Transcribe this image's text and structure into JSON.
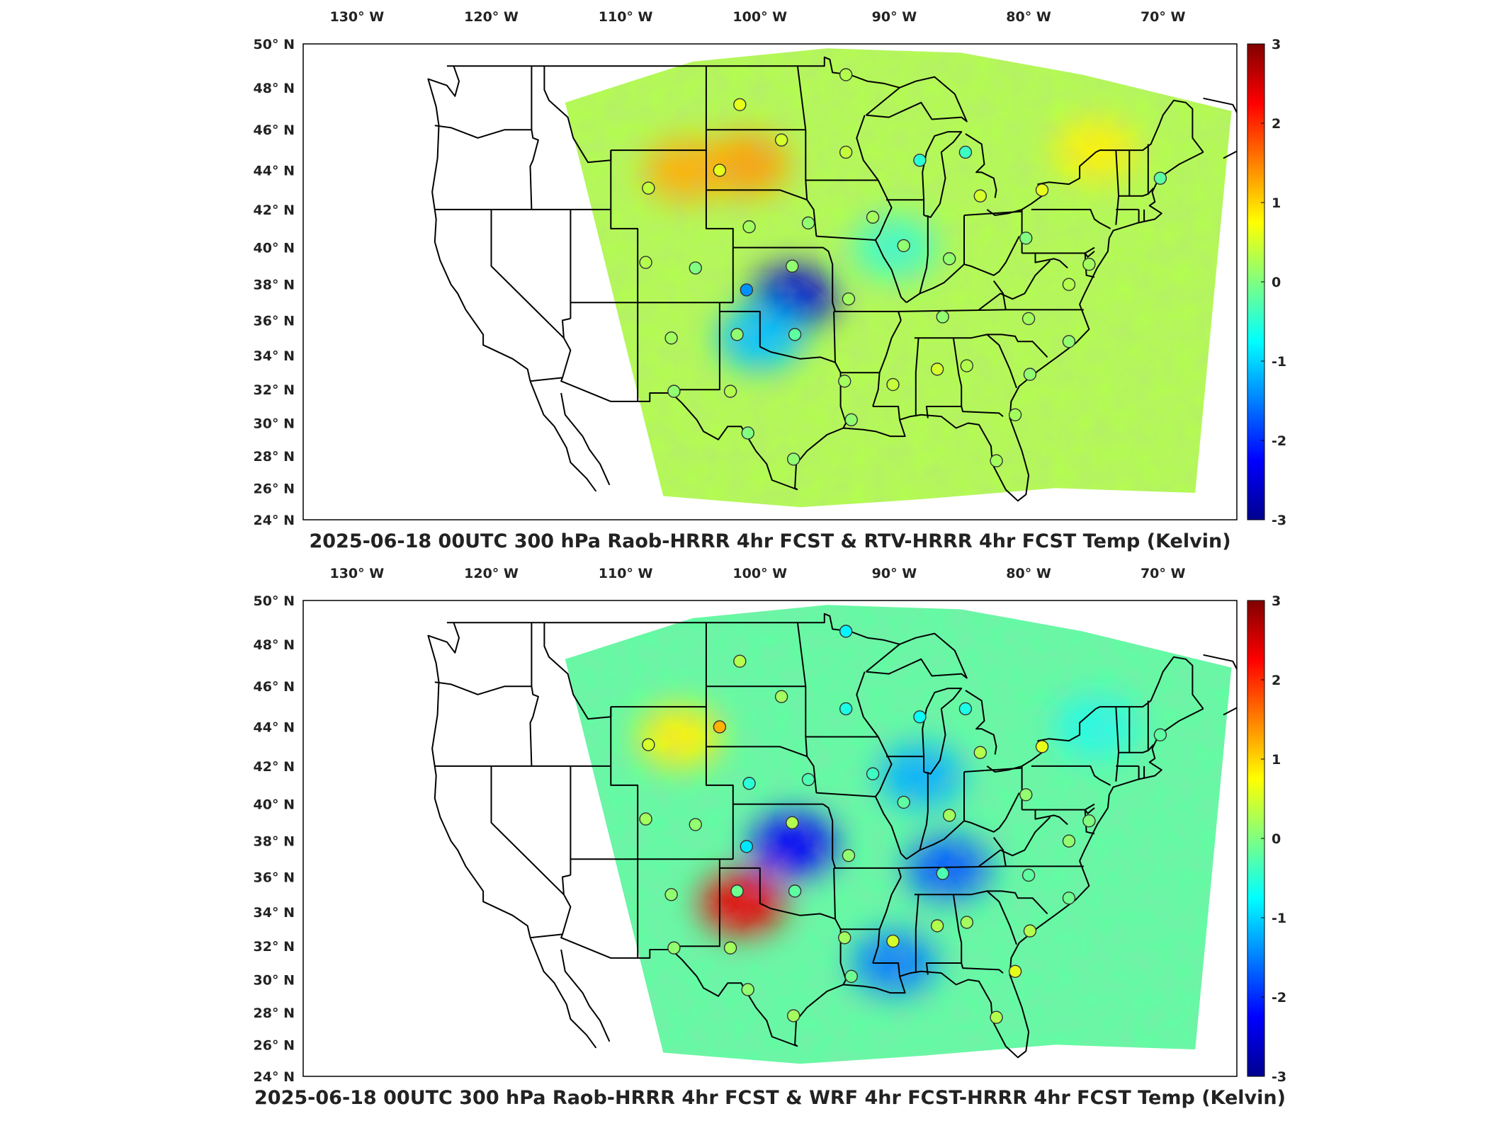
{
  "panels": [
    {
      "id": "top",
      "title": "2025-06-18 00UTC 300 hPa Raob-HRRR 4hr FCST & RTV-HRRR 4hr FCST Temp (Kelvin)",
      "lon_ticks": [
        "130° W",
        "120° W",
        "110° W",
        "100° W",
        "90° W",
        "80° W",
        "70° W"
      ],
      "lat_ticks": [
        "50° N",
        "48° N",
        "46° N",
        "44° N",
        "42° N",
        "40° N",
        "38° N",
        "36° N",
        "34° N",
        "32° N",
        "30° N",
        "28° N",
        "26° N",
        "24° N"
      ],
      "colorbar": {
        "min": -3,
        "max": 3,
        "ticks": [
          "3",
          "2",
          "1",
          "0",
          "-1",
          "-2",
          "-3"
        ]
      },
      "field_features": [
        {
          "lon": -97.5,
          "lat": 37.3,
          "value": -2.6
        },
        {
          "lon": -101.0,
          "lat": 44.3,
          "value": 1.3
        },
        {
          "lon": -105.5,
          "lat": 44.0,
          "value": 1.2
        },
        {
          "lon": -100.0,
          "lat": 35.0,
          "value": -1.1
        },
        {
          "lon": -90.0,
          "lat": 40.0,
          "value": -0.4
        },
        {
          "lon": -75.0,
          "lat": 45.0,
          "value": 0.8
        }
      ],
      "stations": [
        {
          "lon": -93.6,
          "lat": 48.6,
          "value": 0.3
        },
        {
          "lon": -101.5,
          "lat": 47.2,
          "value": 0.6
        },
        {
          "lon": -98.4,
          "lat": 45.5,
          "value": 0.5
        },
        {
          "lon": -93.6,
          "lat": 44.9,
          "value": 0.4
        },
        {
          "lon": -88.1,
          "lat": 44.5,
          "value": -0.5
        },
        {
          "lon": -84.7,
          "lat": 44.9,
          "value": -0.4
        },
        {
          "lon": -103.0,
          "lat": 44.0,
          "value": 0.6
        },
        {
          "lon": -108.3,
          "lat": 43.1,
          "value": 0.4
        },
        {
          "lon": -100.8,
          "lat": 41.1,
          "value": 0.2
        },
        {
          "lon": -96.4,
          "lat": 41.3,
          "value": 0.1
        },
        {
          "lon": -91.6,
          "lat": 41.6,
          "value": 0.2
        },
        {
          "lon": -83.6,
          "lat": 42.7,
          "value": 0.5
        },
        {
          "lon": -79.0,
          "lat": 43.0,
          "value": 0.6
        },
        {
          "lon": -89.3,
          "lat": 40.1,
          "value": 0.1
        },
        {
          "lon": -80.2,
          "lat": 40.5,
          "value": 0.0
        },
        {
          "lon": -85.9,
          "lat": 39.4,
          "value": 0.1
        },
        {
          "lon": -108.5,
          "lat": 39.2,
          "value": 0.3
        },
        {
          "lon": -104.8,
          "lat": 38.9,
          "value": 0.0
        },
        {
          "lon": -97.6,
          "lat": 39.0,
          "value": 0.1
        },
        {
          "lon": -101.0,
          "lat": 37.7,
          "value": -1.4
        },
        {
          "lon": -93.4,
          "lat": 37.2,
          "value": 0.2
        },
        {
          "lon": -86.4,
          "lat": 36.2,
          "value": 0.1
        },
        {
          "lon": -80.0,
          "lat": 36.1,
          "value": 0.2
        },
        {
          "lon": -77.0,
          "lat": 38.0,
          "value": 0.3
        },
        {
          "lon": -75.5,
          "lat": 39.1,
          "value": 0.2
        },
        {
          "lon": -106.6,
          "lat": 35.0,
          "value": 0.2
        },
        {
          "lon": -101.7,
          "lat": 35.2,
          "value": 0.1
        },
        {
          "lon": -97.4,
          "lat": 35.2,
          "value": -0.2
        },
        {
          "lon": -77.0,
          "lat": 34.8,
          "value": 0.1
        },
        {
          "lon": -84.6,
          "lat": 33.4,
          "value": 0.3
        },
        {
          "lon": -86.8,
          "lat": 33.2,
          "value": 0.5
        },
        {
          "lon": -90.1,
          "lat": 32.3,
          "value": 0.4
        },
        {
          "lon": -93.7,
          "lat": 32.5,
          "value": 0.2
        },
        {
          "lon": -79.9,
          "lat": 32.9,
          "value": 0.1
        },
        {
          "lon": -106.4,
          "lat": 31.9,
          "value": 0.1
        },
        {
          "lon": -102.2,
          "lat": 31.9,
          "value": 0.3
        },
        {
          "lon": -81.0,
          "lat": 30.5,
          "value": 0.2
        },
        {
          "lon": -93.2,
          "lat": 30.2,
          "value": 0.1
        },
        {
          "lon": -100.9,
          "lat": 29.4,
          "value": 0.0
        },
        {
          "lon": -97.5,
          "lat": 27.8,
          "value": 0.1
        },
        {
          "lon": -82.4,
          "lat": 27.7,
          "value": 0.2
        },
        {
          "lon": -70.2,
          "lat": 43.6,
          "value": -0.2
        }
      ]
    },
    {
      "id": "bottom",
      "title": "2025-06-18 00UTC 300 hPa Raob-HRRR 4hr FCST & WRF 4hr FCST-HRRR 4hr FCST Temp (Kelvin)",
      "lon_ticks": [
        "130° W",
        "120° W",
        "110° W",
        "100° W",
        "90° W",
        "80° W",
        "70° W"
      ],
      "lat_ticks": [
        "50° N",
        "48° N",
        "46° N",
        "44° N",
        "42° N",
        "40° N",
        "38° N",
        "36° N",
        "34° N",
        "32° N",
        "30° N",
        "28° N",
        "26° N",
        "24° N"
      ],
      "colorbar": {
        "min": -3,
        "max": 3,
        "ticks": [
          "3",
          "2",
          "1",
          "0",
          "-1",
          "-2",
          "-3"
        ]
      },
      "field_features": [
        {
          "lon": -97.5,
          "lat": 37.8,
          "value": -2.3
        },
        {
          "lon": -86.0,
          "lat": 36.5,
          "value": -1.7
        },
        {
          "lon": -90.0,
          "lat": 31.0,
          "value": -1.5
        },
        {
          "lon": -88.0,
          "lat": 41.5,
          "value": -1.2
        },
        {
          "lon": -101.3,
          "lat": 34.5,
          "value": 2.4
        },
        {
          "lon": -106.0,
          "lat": 43.5,
          "value": 0.8
        },
        {
          "lon": -75.0,
          "lat": 44.0,
          "value": -0.6
        }
      ],
      "stations": [
        {
          "lon": -93.6,
          "lat": 48.6,
          "value": -0.8
        },
        {
          "lon": -101.5,
          "lat": 47.2,
          "value": 0.3
        },
        {
          "lon": -98.4,
          "lat": 45.5,
          "value": 0.2
        },
        {
          "lon": -93.6,
          "lat": 44.9,
          "value": -0.6
        },
        {
          "lon": -88.1,
          "lat": 44.5,
          "value": -0.7
        },
        {
          "lon": -84.7,
          "lat": 44.9,
          "value": -0.6
        },
        {
          "lon": -103.0,
          "lat": 44.0,
          "value": 1.2
        },
        {
          "lon": -108.3,
          "lat": 43.1,
          "value": 0.5
        },
        {
          "lon": -100.8,
          "lat": 41.1,
          "value": -0.5
        },
        {
          "lon": -96.4,
          "lat": 41.3,
          "value": -0.3
        },
        {
          "lon": -91.6,
          "lat": 41.6,
          "value": -0.4
        },
        {
          "lon": -83.6,
          "lat": 42.7,
          "value": 0.3
        },
        {
          "lon": -79.0,
          "lat": 43.0,
          "value": 0.6
        },
        {
          "lon": -89.3,
          "lat": 40.1,
          "value": -0.2
        },
        {
          "lon": -80.2,
          "lat": 40.5,
          "value": 0.1
        },
        {
          "lon": -85.9,
          "lat": 39.4,
          "value": 0.2
        },
        {
          "lon": -108.5,
          "lat": 39.2,
          "value": 0.2
        },
        {
          "lon": -104.8,
          "lat": 38.9,
          "value": 0.1
        },
        {
          "lon": -97.6,
          "lat": 39.0,
          "value": 0.3
        },
        {
          "lon": -101.0,
          "lat": 37.7,
          "value": -0.9
        },
        {
          "lon": -93.4,
          "lat": 37.2,
          "value": 0.1
        },
        {
          "lon": -86.4,
          "lat": 36.2,
          "value": -0.3
        },
        {
          "lon": -80.0,
          "lat": 36.1,
          "value": -0.2
        },
        {
          "lon": -77.0,
          "lat": 38.0,
          "value": 0.1
        },
        {
          "lon": -75.5,
          "lat": 39.1,
          "value": 0.0
        },
        {
          "lon": -106.6,
          "lat": 35.0,
          "value": 0.1
        },
        {
          "lon": -101.7,
          "lat": 35.2,
          "value": -0.1
        },
        {
          "lon": -97.4,
          "lat": 35.2,
          "value": -0.2
        },
        {
          "lon": -77.0,
          "lat": 34.8,
          "value": -0.1
        },
        {
          "lon": -84.6,
          "lat": 33.4,
          "value": 0.2
        },
        {
          "lon": -86.8,
          "lat": 33.2,
          "value": 0.3
        },
        {
          "lon": -90.1,
          "lat": 32.3,
          "value": 0.5
        },
        {
          "lon": -93.7,
          "lat": 32.5,
          "value": 0.2
        },
        {
          "lon": -79.9,
          "lat": 32.9,
          "value": 0.3
        },
        {
          "lon": -106.4,
          "lat": 31.9,
          "value": 0.1
        },
        {
          "lon": -102.2,
          "lat": 31.9,
          "value": 0.2
        },
        {
          "lon": -81.0,
          "lat": 30.5,
          "value": 0.6
        },
        {
          "lon": -93.2,
          "lat": 30.2,
          "value": -0.1
        },
        {
          "lon": -100.9,
          "lat": 29.4,
          "value": 0.1
        },
        {
          "lon": -97.5,
          "lat": 27.8,
          "value": 0.2
        },
        {
          "lon": -82.4,
          "lat": 27.7,
          "value": 0.3
        },
        {
          "lon": -70.2,
          "lat": 43.6,
          "value": -0.2
        }
      ]
    }
  ],
  "colors": {
    "colormap": [
      "#00008f",
      "#0000ff",
      "#0080ff",
      "#00ffff",
      "#80ff80",
      "#ffff00",
      "#ff8000",
      "#ff0000",
      "#800000"
    ],
    "boundary": "#000000",
    "frame": "#000000"
  }
}
